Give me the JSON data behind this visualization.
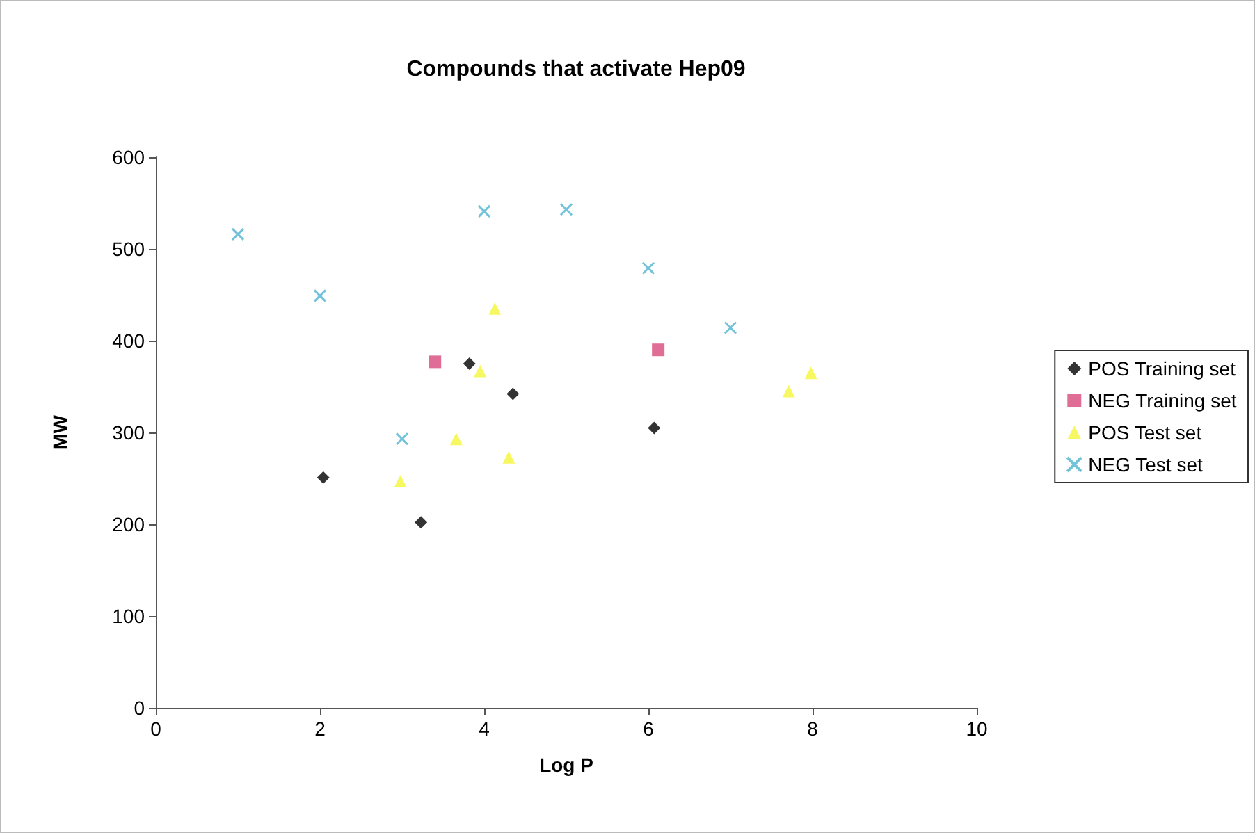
{
  "chart_data": {
    "type": "scatter",
    "title": "Compounds that activate Hep09",
    "xlabel": "Log P",
    "ylabel": "MW",
    "xlim": [
      0,
      10
    ],
    "xticks": [
      0,
      2,
      4,
      6,
      8,
      10
    ],
    "ylim": [
      0,
      600
    ],
    "yticks": [
      0,
      100,
      200,
      300,
      400,
      500,
      600
    ],
    "grid": false,
    "legend": "right",
    "series": [
      {
        "name": "POS Training set",
        "color": "#000000",
        "marker": "diamond",
        "x": [
          2.04,
          3.23,
          3.82,
          4.35,
          6.07
        ],
        "values": [
          251,
          202,
          375,
          342,
          305
        ]
      },
      {
        "name": "NEG Training set",
        "color": "#d8497a",
        "marker": "square",
        "x": [
          3.4,
          6.12
        ],
        "values": [
          377,
          390
        ]
      },
      {
        "name": "POS Test set",
        "color": "#f5f53a",
        "marker": "triangle",
        "x": [
          4.13,
          3.95,
          3.66,
          4.3,
          2.98,
          7.71,
          7.98
        ],
        "values": [
          435,
          367,
          293,
          273,
          247,
          345,
          365
        ]
      },
      {
        "name": "NEG Test set",
        "color": "#4fb3cf",
        "marker": "cross",
        "x": [
          1,
          2,
          4,
          5,
          3,
          6,
          7
        ],
        "values": [
          516,
          449,
          541,
          543,
          293,
          479,
          414
        ]
      }
    ]
  }
}
